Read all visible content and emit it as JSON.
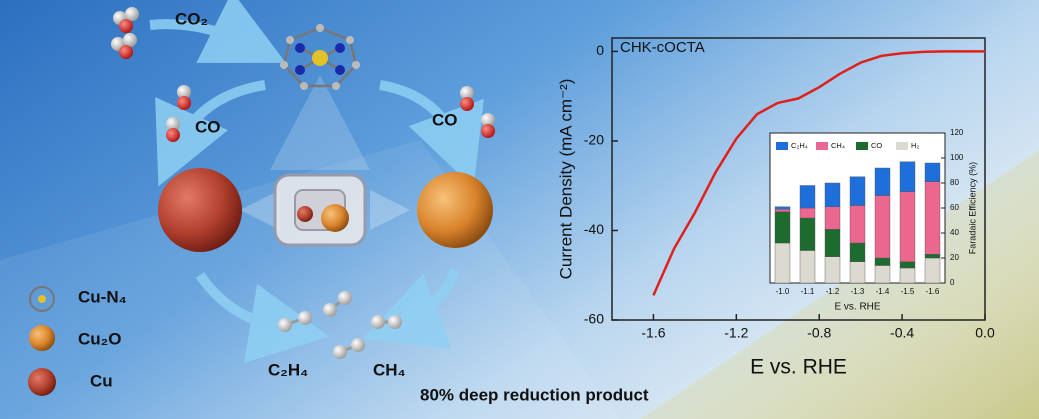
{
  "illustration": {
    "co2": "CO₂",
    "co_left": "CO",
    "co_right": "CO",
    "legend": [
      "Cu-N₄",
      "Cu₂O",
      "Cu"
    ],
    "products": [
      "C₂H₄",
      "CH₄"
    ],
    "caption": "80% deep reduction product"
  },
  "chart_data": [
    {
      "type": "line",
      "title": "CHK-cOCTA",
      "x_label": "E vs. RHE",
      "y_label": "Current Density (mA cm⁻²)",
      "x": [
        -1.6,
        -1.5,
        -1.4,
        -1.3,
        -1.2,
        -1.1,
        -1.0,
        -0.9,
        -0.8,
        -0.7,
        -0.6,
        -0.5,
        -0.4,
        -0.3,
        -0.2,
        -0.1,
        0.0
      ],
      "values": [
        -54.5,
        -44,
        -36,
        -27,
        -19.5,
        -14,
        -11.5,
        -10.5,
        -8,
        -5,
        -2.5,
        -1,
        -0.4,
        -0.1,
        0,
        0,
        0
      ],
      "color": "#e0201b",
      "xlim": [
        -1.8,
        0.0
      ],
      "ylim": [
        -60,
        3
      ],
      "xticks": [
        -1.6,
        -1.2,
        -0.8,
        -0.4,
        {
          "value": 0,
          "label": "0.0"
        }
      ],
      "yticks": [
        0,
        -20,
        -40,
        -60
      ]
    },
    {
      "type": "bar",
      "stacked": true,
      "x_label": "E vs. RHE",
      "y_label": "Faradaic Efficiency (%)",
      "categories": [
        "-1.0",
        "-1.1",
        "-1.2",
        "-1.3",
        "-1.4",
        "-1.5",
        "-1.6"
      ],
      "series": [
        {
          "name": "H₂",
          "color": "#dcd9d1",
          "values": [
            32,
            26,
            21,
            17,
            14,
            12,
            20
          ]
        },
        {
          "name": "CO",
          "color": "#1e6b30",
          "values": [
            25,
            26,
            22,
            15,
            6,
            5,
            3
          ]
        },
        {
          "name": "CH₄",
          "color": "#ea6790",
          "values": [
            2,
            8,
            18,
            30,
            50,
            56,
            58
          ]
        },
        {
          "name": "C₂H₄",
          "color": "#1e6fd9",
          "values": [
            2,
            18,
            19,
            23,
            22,
            24,
            15
          ]
        }
      ],
      "legend_order": [
        3,
        2,
        1,
        0
      ],
      "ylim": [
        0,
        120
      ],
      "yticks": [
        0,
        20,
        40,
        60,
        80,
        100,
        120
      ],
      "axis": "right"
    }
  ]
}
